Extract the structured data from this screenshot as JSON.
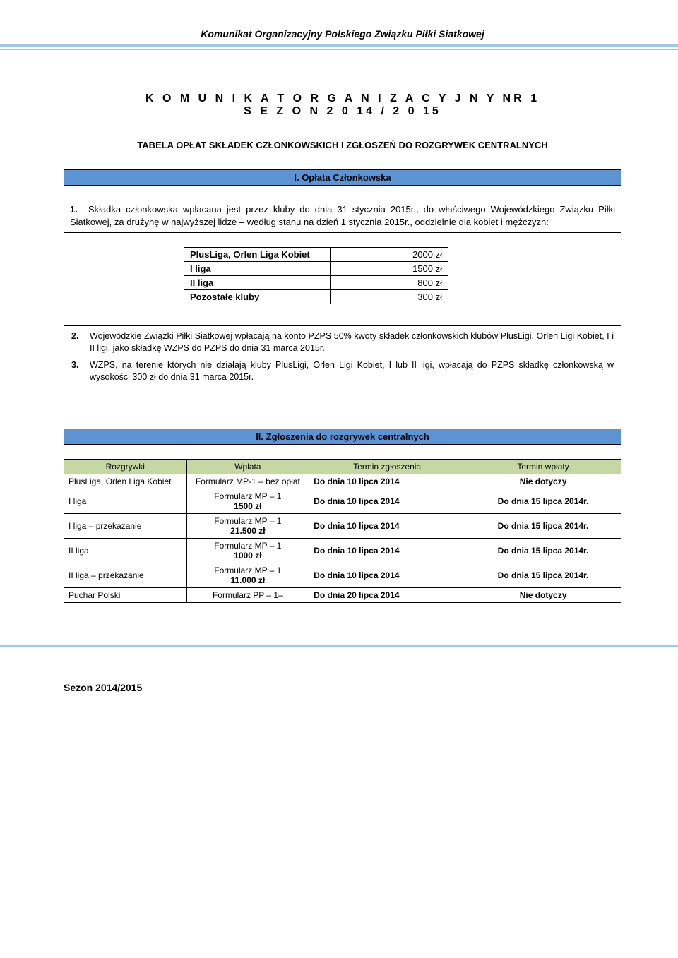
{
  "header": {
    "title": "Komunikat Organizacyjny Polskiego Związku Piłki Siatkowej"
  },
  "title": {
    "line1": "K O M U N I K A T   O R G A N I Z A C Y J N Y  NR 1",
    "line2": "S E Z O N   2 0 14 / 2 0 15",
    "caption": "TABELA OPŁAT SKŁADEK CZŁONKOWSKICH I ZGŁOSZEŃ DO ROZGRYWEK CENTRALNYCH"
  },
  "section1": {
    "bar": "I.  Opłata Członkowska",
    "para_num": "1.",
    "para_text": "Składka członkowska wpłacana jest przez kluby do dnia 31 stycznia 2015r., do właściwego Wojewódzkiego Związku Piłki Siatkowej, za drużynę w najwyższej lidze – według stanu na dzień 1 stycznia 2015r., oddzielnie dla kobiet i mężczyzn:",
    "fees": {
      "rows": [
        {
          "label": "PlusLiga, Orlen Liga Kobiet",
          "value": "2000 zł"
        },
        {
          "label": "I liga",
          "value": "1500 zł"
        },
        {
          "label": "II liga",
          "value": "800 zł"
        },
        {
          "label": "Pozostałe kluby",
          "value": "300 zł"
        }
      ]
    },
    "notes": [
      {
        "num": "2.",
        "text": "Wojewódzkie Związki Piłki Siatkowej wpłacają na konto PZPS 50% kwoty składek członkowskich klubów PlusLigi, Orlen Ligi Kobiet, I i II ligi, jako składkę WZPS do PZPS do dnia 31 marca 2015r."
      },
      {
        "num": "3.",
        "text": "WZPS, na terenie których nie działają kluby PlusLigi, Orlen Ligi Kobiet, I lub II ligi, wpłacają do PZPS składkę członkowską w wysokości 300 zł do dnia 31 marca  2015r."
      }
    ]
  },
  "section2": {
    "bar": "II. Zgłoszenia do rozgrywek centralnych",
    "headers": [
      "Rozgrywki",
      "Wpłata",
      "Termin zgłoszenia",
      "Termin wpłaty"
    ],
    "rows": [
      {
        "c1": "PlusLiga, Orlen Liga Kobiet",
        "c2": "Formularz MP-1 – bez opłat",
        "c3": "Do dnia 10 lipca 2014",
        "c4": "Nie dotyczy"
      },
      {
        "c1": "I liga",
        "c2": "Formularz MP – 1\n1500 zł",
        "c3": "Do dnia 10 lipca 2014",
        "c4": "Do dnia 15 lipca 2014r."
      },
      {
        "c1": "I liga – przekazanie",
        "c2": "Formularz MP – 1\n21.500 zł",
        "c3": "Do dnia 10 lipca 2014",
        "c4": "Do dnia 15 lipca 2014r."
      },
      {
        "c1": "II liga",
        "c2": "Formularz MP – 1\n1000 zł",
        "c3": "Do dnia 10 lipca 2014",
        "c4": "Do dnia 15 lipca 2014r."
      },
      {
        "c1": "II liga – przekazanie",
        "c2": "Formularz MP – 1\n11.000 zł",
        "c3": "Do dnia 10 lipca 2014",
        "c4": "Do dnia 15 lipca 2014r."
      },
      {
        "c1": "Puchar Polski",
        "c2": "Formularz PP – 1–",
        "c3": "Do dnia 20 lipca 2014",
        "c4": "Nie dotyczy"
      }
    ]
  },
  "footer": {
    "text": "Sezon 2014/2015"
  },
  "colors": {
    "bar_bg": "#5c93d3",
    "rule": "#a0c8e8",
    "th_bg": "#c5d8a4"
  }
}
